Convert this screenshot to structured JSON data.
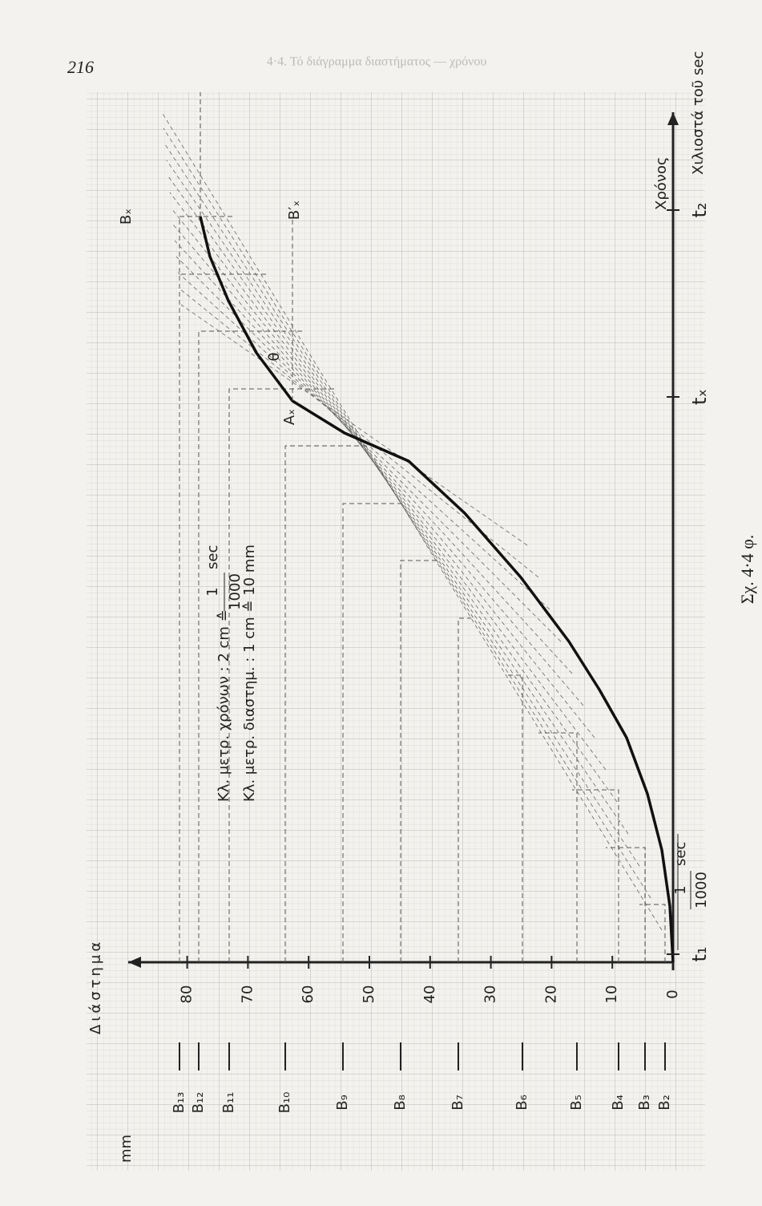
{
  "header": {
    "page_number": "216",
    "running_head": "4·4. Τό διάγραμμα διαστήματος — χρόνου"
  },
  "figure": {
    "distance_label": "Διάστημα",
    "distance_unit": "mm",
    "distance_ticks": [
      "0",
      "10",
      "20",
      "30",
      "40",
      "50",
      "60",
      "70",
      "80"
    ],
    "positions": [
      "B₂",
      "B₃",
      "B₄",
      "B₅",
      "B₆",
      "B₇",
      "B₈",
      "B₉",
      "B₁₀",
      "B₁₁",
      "B₁₂",
      "B₁₃"
    ],
    "time_label": "Χρόνος",
    "time_unit": "Χιλιοστά τοῦ sec",
    "time_marks": [
      "t₁",
      "tₓ",
      "t₂"
    ],
    "point_labels": {
      "A": "Aₓ",
      "B": "Bₓ",
      "B_prime": "B′ₓ",
      "angle": "θ"
    },
    "scale_time": {
      "text": "Κλ. μετρ. χρόνων : 2 cm ≙",
      "numerator": "1",
      "denominator": "1000",
      "unit": "sec"
    },
    "scale_distance": "Κλ. μετρ. διαστημ. : 1 cm ≙ 10 mm",
    "interval": {
      "numerator": "1",
      "denominator": "1000",
      "unit": "sec"
    }
  },
  "caption": "Σχ. 4·4 φ."
}
